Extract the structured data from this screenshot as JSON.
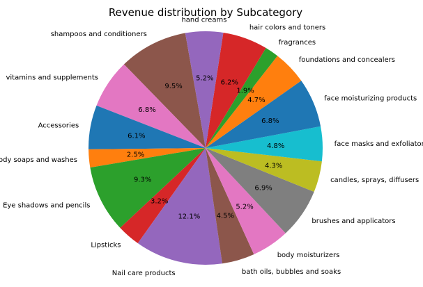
{
  "chart_data": {
    "type": "pie",
    "title": "Revenue distribution by Subcategory",
    "slices": [
      {
        "label": "shampoos and conditioners",
        "value": 9.5,
        "pct_text": "9.5%",
        "color": "#8c564b"
      },
      {
        "label": "vitamins and supplements",
        "value": 6.8,
        "pct_text": "6.8%",
        "color": "#e377c2"
      },
      {
        "label": "Accessories",
        "value": 6.1,
        "pct_text": "6.1%",
        "color": "#1f77b4"
      },
      {
        "label": "Body soaps and washes",
        "value": 2.5,
        "pct_text": "2.5%",
        "color": "#ff7f0e"
      },
      {
        "label": "Eye shadows and pencils",
        "value": 9.3,
        "pct_text": "9.3%",
        "color": "#2ca02c"
      },
      {
        "label": "Lipsticks",
        "value": 3.2,
        "pct_text": "3.2%",
        "color": "#d62728"
      },
      {
        "label": "Nail care products",
        "value": 12.1,
        "pct_text": "12.1%",
        "color": "#9467bd"
      },
      {
        "label": "bath oils, bubbles and soaks",
        "value": 4.5,
        "pct_text": "4.5%",
        "color": "#8c564b"
      },
      {
        "label": "body moisturizers",
        "value": 5.2,
        "pct_text": "5.2%",
        "color": "#e377c2"
      },
      {
        "label": "brushes and applicators",
        "value": 6.9,
        "pct_text": "6.9%",
        "color": "#7f7f7f"
      },
      {
        "label": "candles, sprays, diffusers",
        "value": 4.3,
        "pct_text": "4.3%",
        "color": "#bcbd22"
      },
      {
        "label": "face masks and exfoliators",
        "value": 4.8,
        "pct_text": "4.8%",
        "color": "#17becf"
      },
      {
        "label": "face moisturizing products",
        "value": 6.8,
        "pct_text": "6.8%",
        "color": "#1f77b4"
      },
      {
        "label": "foundations and concealers",
        "value": 4.7,
        "pct_text": "4.7%",
        "color": "#ff7f0e"
      },
      {
        "label": "fragrances",
        "value": 1.9,
        "pct_text": "1.9%",
        "color": "#2ca02c"
      },
      {
        "label": "hair colors and toners",
        "value": 6.2,
        "pct_text": "6.2%",
        "color": "#d62728"
      },
      {
        "label": "hand creams",
        "value": 5.2,
        "pct_text": "5.2%",
        "color": "#9467bd"
      }
    ]
  }
}
